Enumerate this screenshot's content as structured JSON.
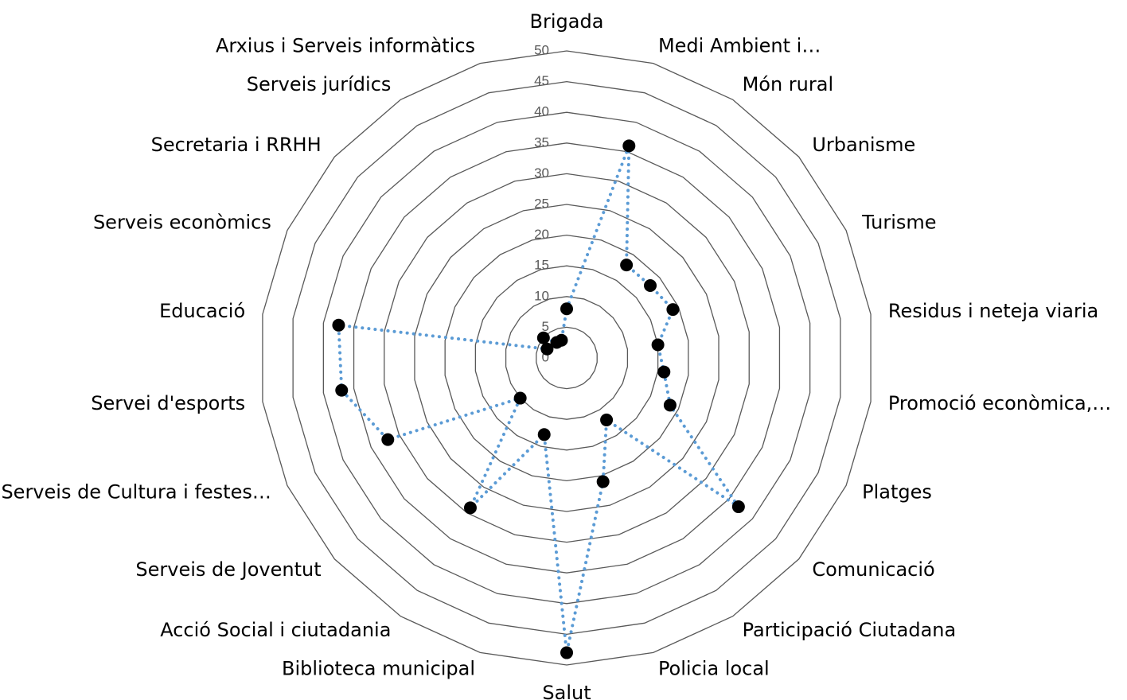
{
  "chart_data": {
    "type": "radar",
    "categories": [
      "Brigada",
      "Medi Ambient i…",
      "Món rural",
      "Urbanisme",
      "Turisme",
      "Residus i neteja viaria",
      "Promoció econòmica,…",
      "Platges",
      "Comunicació",
      "Participació Ciutadana",
      "Policia local",
      "Salut",
      "Biblioteca municipal",
      "Acció Social i ciutadania",
      "Serveis de Joventut",
      "Serveis de Cultura i festes…",
      "Servei d'esports",
      "Educació",
      "Serveis econòmics",
      "Secretaria i RRHH",
      "Serveis jurídics",
      "Arxius i Serveis informàtics"
    ],
    "values": [
      8,
      36,
      18,
      18,
      19,
      15,
      16,
      18.5,
      37,
      12,
      21,
      48,
      13,
      29,
      10,
      32,
      37,
      37.5,
      3.5,
      5,
      3,
      3
    ],
    "color": "#5b9bd5",
    "marker_color": "#000000",
    "grid_color": "#595959",
    "ylim": [
      0,
      50
    ],
    "yticks": [
      0,
      5,
      10,
      15,
      20,
      25,
      30,
      35,
      40,
      45,
      50
    ],
    "grid": true
  }
}
